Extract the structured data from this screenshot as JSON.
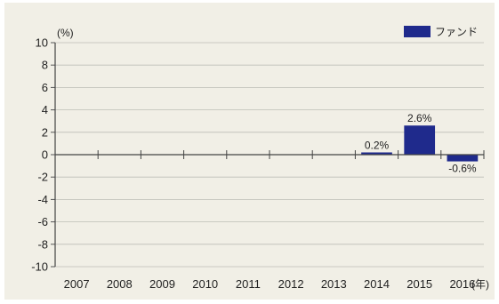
{
  "chart_data": {
    "type": "bar",
    "categories": [
      "2007",
      "2008",
      "2009",
      "2010",
      "2011",
      "2012",
      "2013",
      "2014",
      "2015",
      "2016"
    ],
    "series": [
      {
        "name": "ファンド",
        "values": [
          null,
          null,
          null,
          null,
          null,
          null,
          null,
          0.2,
          2.6,
          -0.6
        ],
        "color": "#1f2a8c"
      }
    ],
    "data_labels": [
      "",
      "",
      "",
      "",
      "",
      "",
      "",
      "0.2%",
      "2.6%",
      "-0.6%"
    ],
    "y_unit": "(%)",
    "x_unit": "(年)",
    "ylim": [
      -10,
      10
    ],
    "yticks": [
      10,
      8,
      6,
      4,
      2,
      0,
      -2,
      -4,
      -6,
      -8,
      -10
    ],
    "grid": true,
    "legend_position": "top-right"
  }
}
